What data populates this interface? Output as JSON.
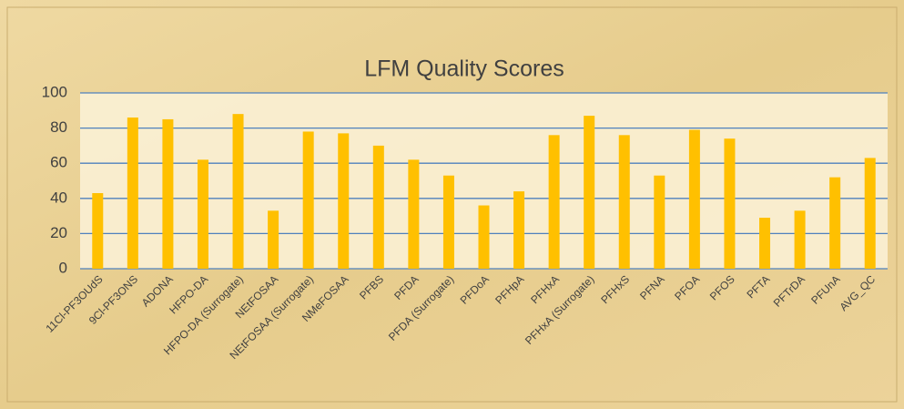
{
  "chart_data": {
    "type": "bar",
    "title": "LFM Quality Scores",
    "categories": [
      "11Cl-PF3OUdS",
      "9Cl-PF3ONS",
      "ADONA",
      "HFPO-DA",
      "HFPO-DA (Surrogate)",
      "NEtFOSAA",
      "NEtFOSAA (Surrogate)",
      "NMeFOSAA",
      "PFBS",
      "PFDA",
      "PFDA (Surrogate)",
      "PFDoA",
      "PFHpA",
      "PFHxA",
      "PFHxA (Surrogate)",
      "PFHxS",
      "PFNA",
      "PFOA",
      "PFOS",
      "PFTA",
      "PFTrDA",
      "PFUnA",
      "AVG_QC"
    ],
    "values": [
      43,
      86,
      85,
      62,
      88,
      33,
      78,
      77,
      70,
      62,
      53,
      36,
      44,
      76,
      87,
      76,
      53,
      79,
      74,
      29,
      33,
      52,
      63
    ],
    "color": "#ffc000",
    "ylim": [
      0,
      100
    ],
    "yticks": [
      0,
      20,
      40,
      60,
      80,
      100
    ],
    "grid": true
  }
}
